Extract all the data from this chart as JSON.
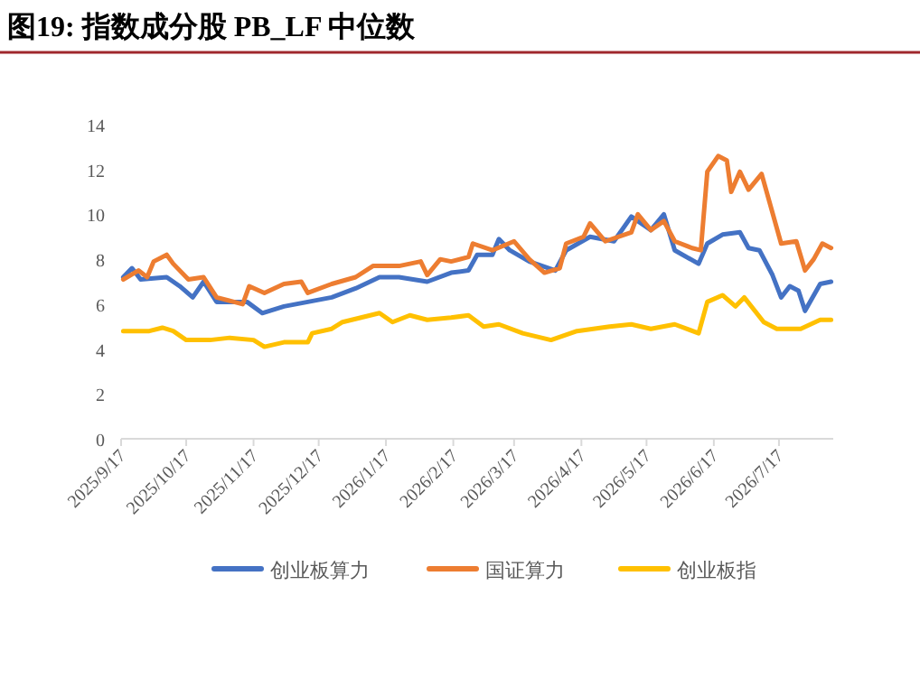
{
  "chart_data": {
    "type": "line",
    "title": "图19:  指数成分股 PB_LF 中位数",
    "xlim": [
      "2025-09-17",
      "2026-08-11"
    ],
    "xticks": [
      {
        "value": "2025-09-17",
        "label": "2025/9/17"
      },
      {
        "value": "2025-10-17",
        "label": "2025/10/17"
      },
      {
        "value": "2025-11-17",
        "label": "2025/11/17"
      },
      {
        "value": "2025-12-17",
        "label": "2025/12/17"
      },
      {
        "value": "2026-01-17",
        "label": "2026/1/17"
      },
      {
        "value": "2026-02-17",
        "label": "2026/2/17"
      },
      {
        "value": "2026-03-17",
        "label": "2026/3/17"
      },
      {
        "value": "2026-04-17",
        "label": "2026/4/17"
      },
      {
        "value": "2026-05-17",
        "label": "2026/5/17"
      },
      {
        "value": "2026-06-17",
        "label": "2026/6/17"
      },
      {
        "value": "2026-07-17",
        "label": "2026/7/17"
      }
    ],
    "ylim": [
      0,
      14
    ],
    "yticks": [
      0,
      2,
      4,
      6,
      8,
      10,
      12,
      14
    ],
    "legend": "bottom",
    "series": [
      {
        "name": "创业板算力",
        "color": "#4472c4",
        "x": [
          "2025-09-18",
          "2025-09-22",
          "2025-09-26",
          "2025-10-08",
          "2025-10-14",
          "2025-10-20",
          "2025-10-25",
          "2025-10-31",
          "2025-11-14",
          "2025-11-21",
          "2025-12-01",
          "2025-12-12",
          "2025-12-23",
          "2026-01-03",
          "2026-01-14",
          "2026-01-23",
          "2026-02-05",
          "2026-02-16",
          "2026-02-24",
          "2026-02-28",
          "2026-03-07",
          "2026-03-10",
          "2026-03-15",
          "2026-03-24",
          "2026-04-05",
          "2026-04-10",
          "2026-04-21",
          "2026-05-02",
          "2026-05-10",
          "2026-05-19",
          "2026-05-25",
          "2026-05-30",
          "2026-06-10",
          "2026-06-14",
          "2026-06-21",
          "2026-06-29",
          "2026-07-03",
          "2026-07-08",
          "2026-07-14",
          "2026-07-18",
          "2026-07-22",
          "2026-07-26",
          "2026-07-29",
          "2026-08-05",
          "2026-08-10"
        ],
        "values": [
          7.2,
          7.6,
          7.1,
          7.2,
          6.8,
          6.3,
          7.0,
          6.1,
          6.1,
          5.6,
          5.9,
          6.1,
          6.3,
          6.7,
          7.2,
          7.2,
          7.0,
          7.4,
          7.5,
          8.2,
          8.2,
          8.9,
          8.4,
          7.9,
          7.5,
          8.4,
          9.0,
          8.8,
          9.9,
          9.3,
          10.0,
          8.4,
          7.8,
          8.7,
          9.1,
          9.2,
          8.5,
          8.4,
          7.3,
          6.3,
          6.8,
          6.6,
          5.7,
          6.9,
          7.0
        ]
      },
      {
        "name": "国证算力",
        "color": "#ed7d31",
        "x": [
          "2025-09-18",
          "2025-09-25",
          "2025-09-29",
          "2025-10-02",
          "2025-10-08",
          "2025-10-11",
          "2025-10-18",
          "2025-10-25",
          "2025-10-31",
          "2025-11-08",
          "2025-11-12",
          "2025-11-15",
          "2025-11-22",
          "2025-12-01",
          "2025-12-09",
          "2025-12-12",
          "2025-12-23",
          "2026-01-03",
          "2026-01-11",
          "2026-01-23",
          "2026-02-02",
          "2026-02-05",
          "2026-02-11",
          "2026-02-16",
          "2026-02-24",
          "2026-02-26",
          "2026-03-07",
          "2026-03-17",
          "2026-03-24",
          "2026-03-31",
          "2026-04-07",
          "2026-04-10",
          "2026-04-18",
          "2026-04-21",
          "2026-04-28",
          "2026-05-10",
          "2026-05-13",
          "2026-05-19",
          "2026-05-25",
          "2026-05-30",
          "2026-06-07",
          "2026-06-11",
          "2026-06-14",
          "2026-06-19",
          "2026-06-23",
          "2026-06-25",
          "2026-06-29",
          "2026-07-03",
          "2026-07-09",
          "2026-07-18",
          "2026-07-25",
          "2026-07-29",
          "2026-08-02",
          "2026-08-06",
          "2026-08-10"
        ],
        "values": [
          7.1,
          7.5,
          7.2,
          7.9,
          8.2,
          7.8,
          7.1,
          7.2,
          6.3,
          6.1,
          6.0,
          6.8,
          6.5,
          6.9,
          7.0,
          6.5,
          6.9,
          7.2,
          7.7,
          7.7,
          7.9,
          7.3,
          8.0,
          7.9,
          8.1,
          8.7,
          8.4,
          8.8,
          8.0,
          7.4,
          7.6,
          8.7,
          9.0,
          9.6,
          8.8,
          9.2,
          10.0,
          9.3,
          9.7,
          8.8,
          8.5,
          8.4,
          11.9,
          12.6,
          12.4,
          11.0,
          11.9,
          11.1,
          11.8,
          8.7,
          8.8,
          7.5,
          8.0,
          8.7,
          8.5
        ]
      },
      {
        "name": "创业板指",
        "color": "#ffc000",
        "x": [
          "2025-09-18",
          "2025-09-30",
          "2025-10-06",
          "2025-10-11",
          "2025-10-17",
          "2025-10-28",
          "2025-11-06",
          "2025-11-17",
          "2025-11-22",
          "2025-12-01",
          "2025-12-12",
          "2025-12-14",
          "2025-12-23",
          "2025-12-28",
          "2026-01-14",
          "2026-01-20",
          "2026-01-28",
          "2026-02-05",
          "2026-02-16",
          "2026-02-24",
          "2026-03-03",
          "2026-03-10",
          "2026-03-21",
          "2026-04-03",
          "2026-04-15",
          "2026-04-30",
          "2026-05-10",
          "2026-05-19",
          "2026-05-30",
          "2026-06-10",
          "2026-06-14",
          "2026-06-21",
          "2026-06-27",
          "2026-07-01",
          "2026-07-10",
          "2026-07-16",
          "2026-07-27",
          "2026-08-05",
          "2026-08-10"
        ],
        "values": [
          4.8,
          4.8,
          4.95,
          4.8,
          4.4,
          4.4,
          4.5,
          4.4,
          4.1,
          4.3,
          4.3,
          4.7,
          4.9,
          5.2,
          5.6,
          5.2,
          5.5,
          5.3,
          5.4,
          5.5,
          5.0,
          5.1,
          4.7,
          4.4,
          4.8,
          5.0,
          5.1,
          4.9,
          5.1,
          4.7,
          6.1,
          6.4,
          5.9,
          6.3,
          5.2,
          4.9,
          4.9,
          5.3,
          5.3
        ]
      }
    ]
  }
}
